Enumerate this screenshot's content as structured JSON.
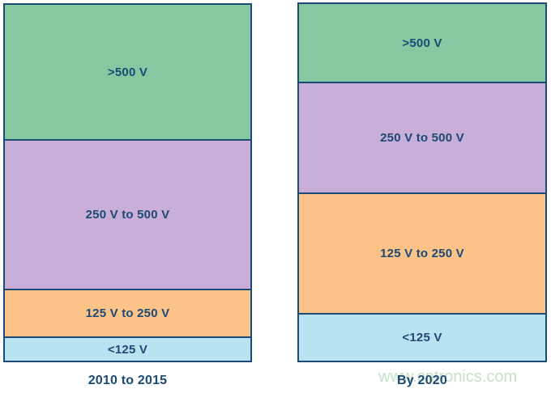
{
  "figure": {
    "background": "#ffffff",
    "border_color": "#1b4a74",
    "text_color": "#1b4a74"
  },
  "watermark": {
    "text": "www.cntronics.com",
    "color": "#9cc79a"
  },
  "chart_data": {
    "type": "bar",
    "subtype": "100-percent-stacked-columns",
    "title": "",
    "xlabel": "",
    "ylabel": "",
    "axes_visible": false,
    "grid": false,
    "legend_position": "labels-inside-segments",
    "categories": [
      "2010 to 2015",
      "By 2020"
    ],
    "segment_order_top_to_bottom": [
      ">500 V",
      "250 V to 500 V",
      "125 V to 250 V",
      "<125 V"
    ],
    "series": [
      {
        "name": ">500 V",
        "color": "#85c8a2",
        "values_pct": [
          37.8,
          21.8
        ]
      },
      {
        "name": "250 V to 500 V",
        "color": "#c8aed9",
        "values_pct": [
          41.9,
          31.0
        ]
      },
      {
        "name": "125 V to 250 V",
        "color": "#fbc388",
        "values_pct": [
          13.5,
          33.9
        ]
      },
      {
        "name": "<125 V",
        "color": "#b9e3f1",
        "values_pct": [
          6.8,
          13.3
        ]
      }
    ]
  }
}
